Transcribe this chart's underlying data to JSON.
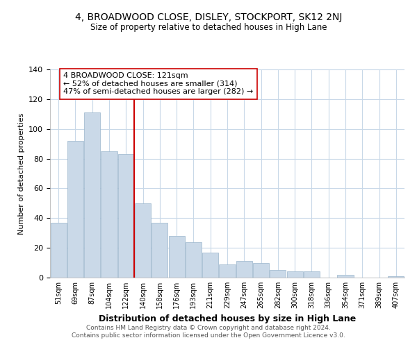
{
  "title": "4, BROADWOOD CLOSE, DISLEY, STOCKPORT, SK12 2NJ",
  "subtitle": "Size of property relative to detached houses in High Lane",
  "xlabel": "Distribution of detached houses by size in High Lane",
  "ylabel": "Number of detached properties",
  "bar_color": "#cad9e8",
  "bar_edge_color": "#9ab5cc",
  "categories": [
    "51sqm",
    "69sqm",
    "87sqm",
    "104sqm",
    "122sqm",
    "140sqm",
    "158sqm",
    "176sqm",
    "193sqm",
    "211sqm",
    "229sqm",
    "247sqm",
    "265sqm",
    "282sqm",
    "300sqm",
    "318sqm",
    "336sqm",
    "354sqm",
    "371sqm",
    "389sqm",
    "407sqm"
  ],
  "values": [
    37,
    92,
    111,
    85,
    83,
    50,
    37,
    28,
    24,
    17,
    9,
    11,
    10,
    5,
    4,
    4,
    0,
    2,
    0,
    0,
    1
  ],
  "vline_color": "#cc0000",
  "annotation_text": "4 BROADWOOD CLOSE: 121sqm\n← 52% of detached houses are smaller (314)\n47% of semi-detached houses are larger (282) →",
  "ylim": [
    0,
    140
  ],
  "yticks": [
    0,
    20,
    40,
    60,
    80,
    100,
    120,
    140
  ],
  "footnote": "Contains HM Land Registry data © Crown copyright and database right 2024.\nContains public sector information licensed under the Open Government Licence v3.0.",
  "background_color": "#ffffff",
  "grid_color": "#c8d8e8"
}
